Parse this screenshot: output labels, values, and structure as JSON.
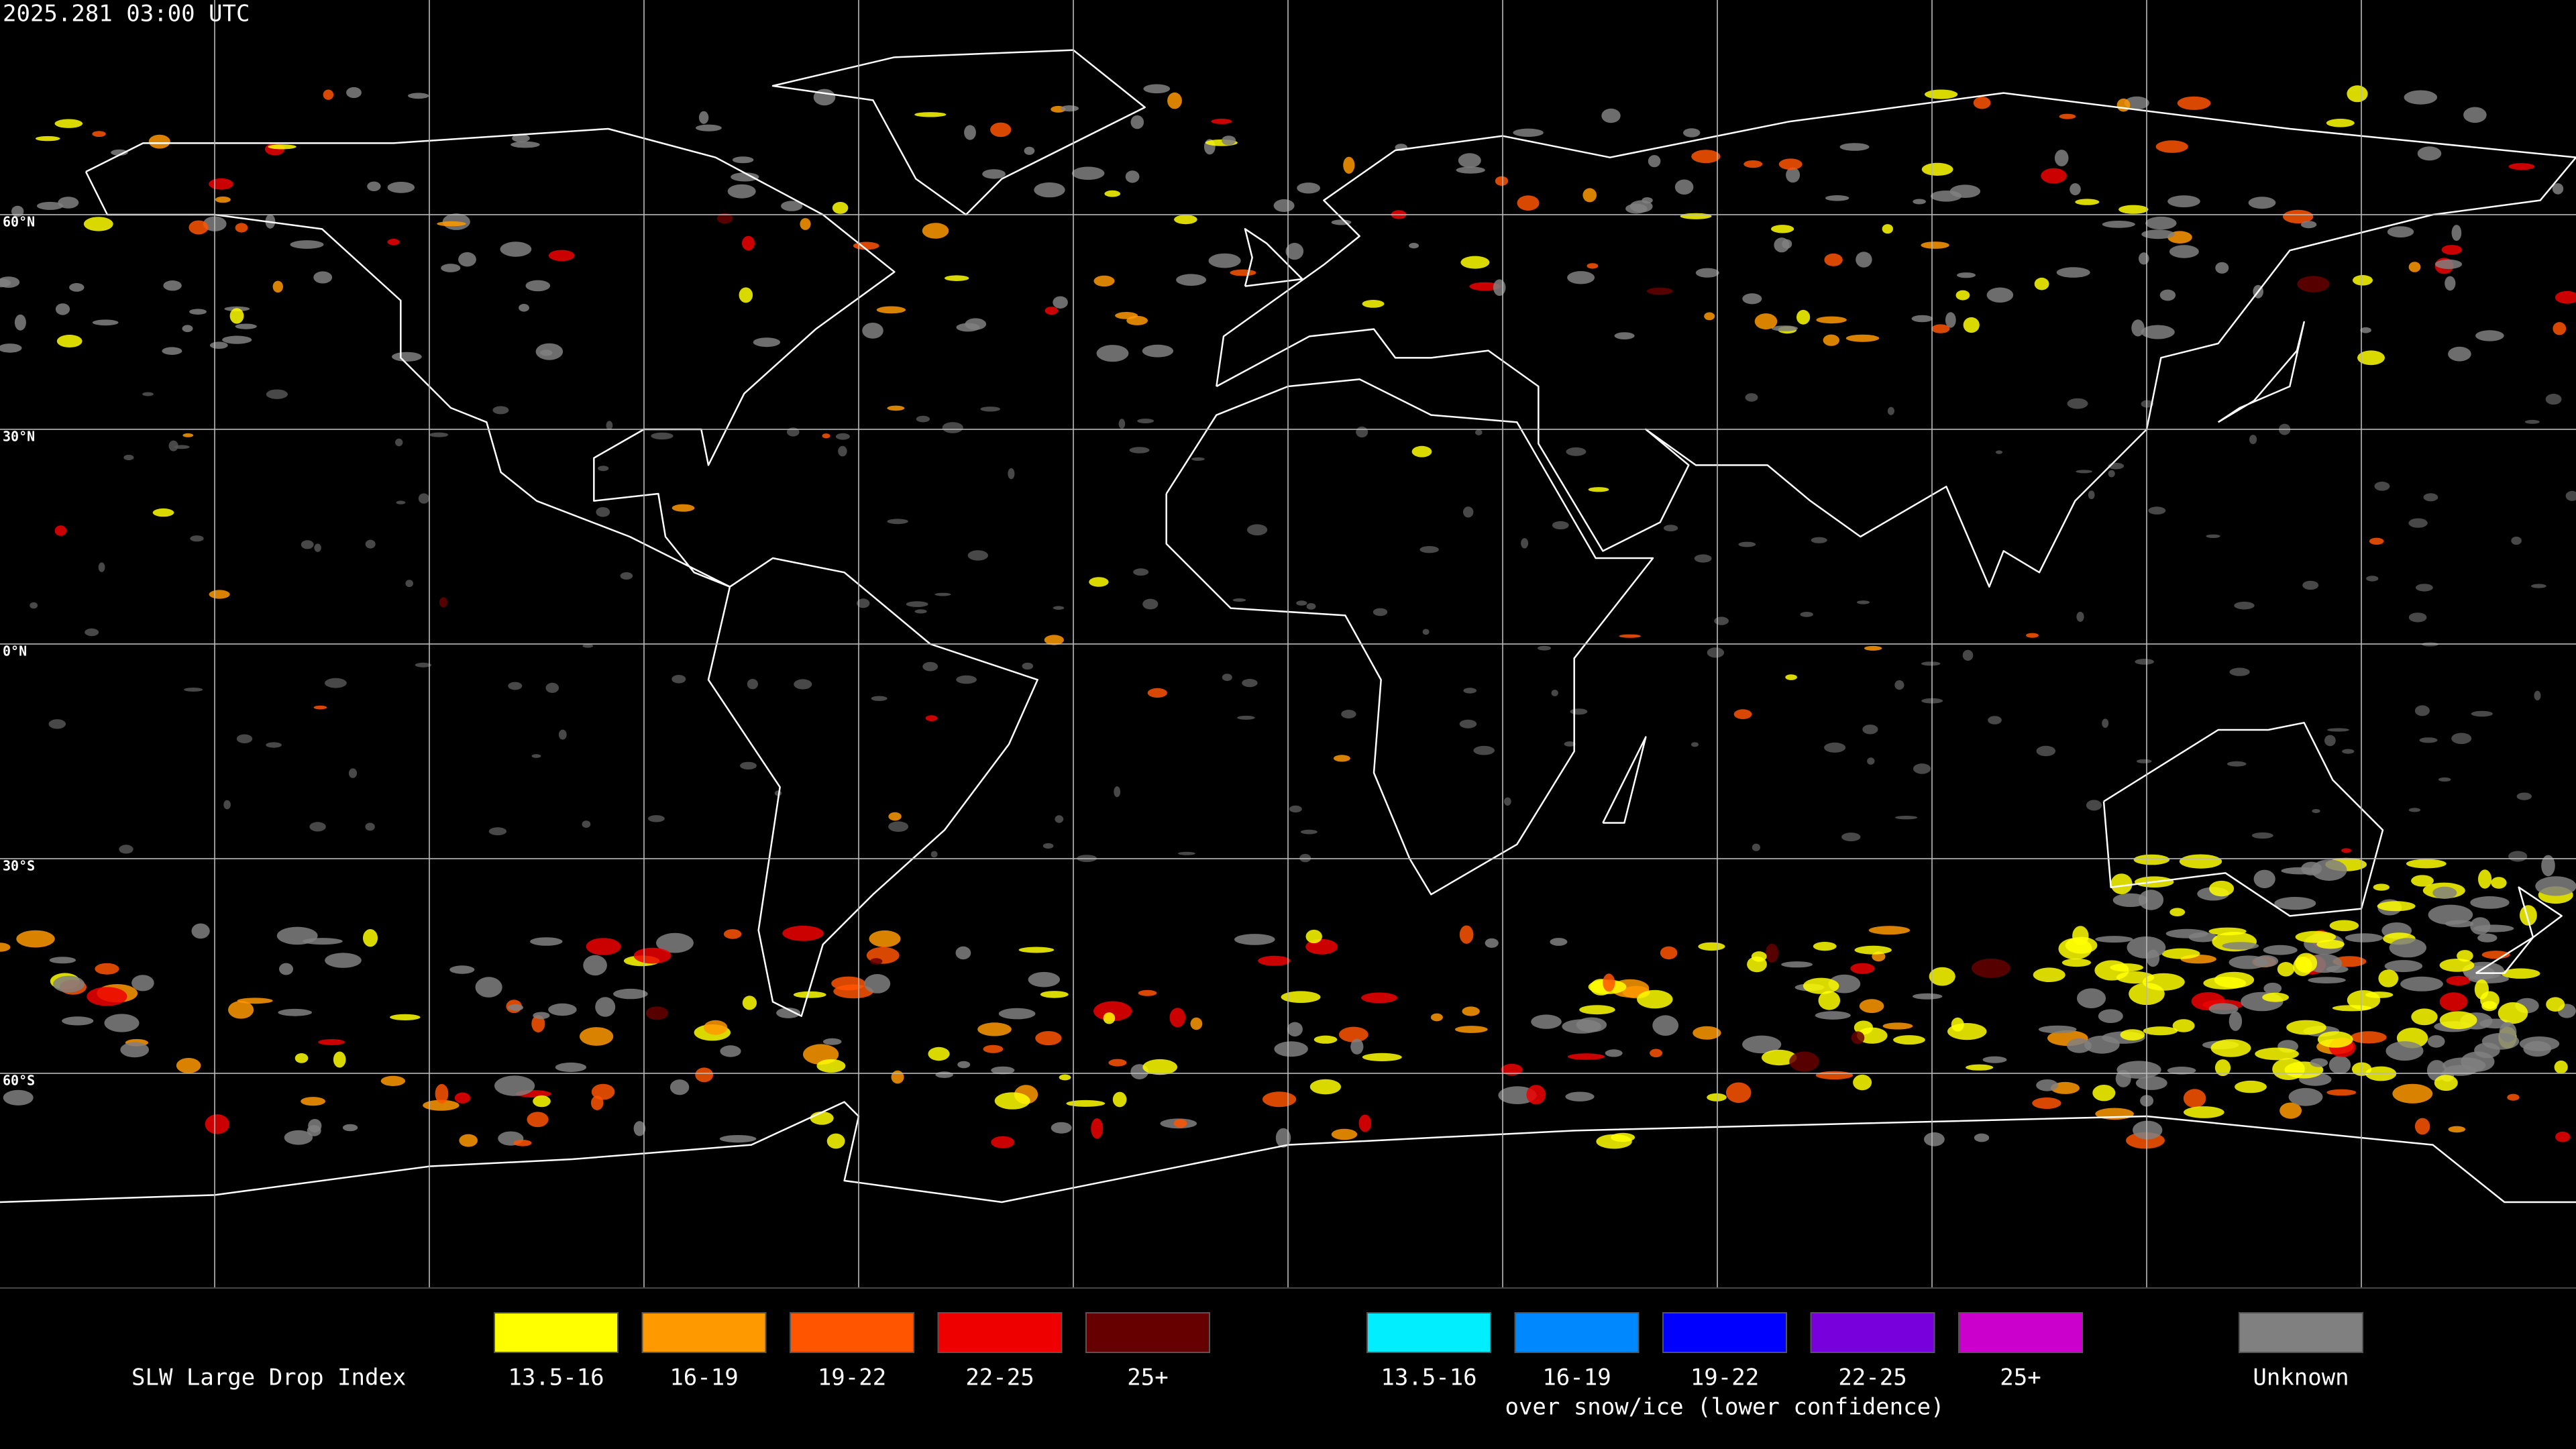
{
  "timestamp": "2025.281 03:00 UTC",
  "latitude_labels": [
    "60°N",
    "30°N",
    "0°N",
    "30°S",
    "60°S"
  ],
  "legend": {
    "title": "SLW Large Drop Index",
    "groups": [
      {
        "items": [
          {
            "label": "13.5-16",
            "color": "#ffff00"
          },
          {
            "label": "16-19",
            "color": "#ff9900"
          },
          {
            "label": "19-22",
            "color": "#ff5500"
          },
          {
            "label": "22-25",
            "color": "#ee0000"
          },
          {
            "label": "25+",
            "color": "#660000"
          }
        ]
      },
      {
        "items": [
          {
            "label": "13.5-16",
            "color": "#00eeff"
          },
          {
            "label": "16-19",
            "color": "#0088ff"
          },
          {
            "label": "19-22",
            "color": "#0000ff"
          },
          {
            "label": "22-25",
            "color": "#7700dd"
          },
          {
            "label": "25+",
            "color": "#cc00cc"
          }
        ],
        "caption": "over snow/ice (lower confidence)"
      },
      {
        "items": [
          {
            "label": "Unknown",
            "color": "#808080"
          }
        ]
      }
    ]
  }
}
